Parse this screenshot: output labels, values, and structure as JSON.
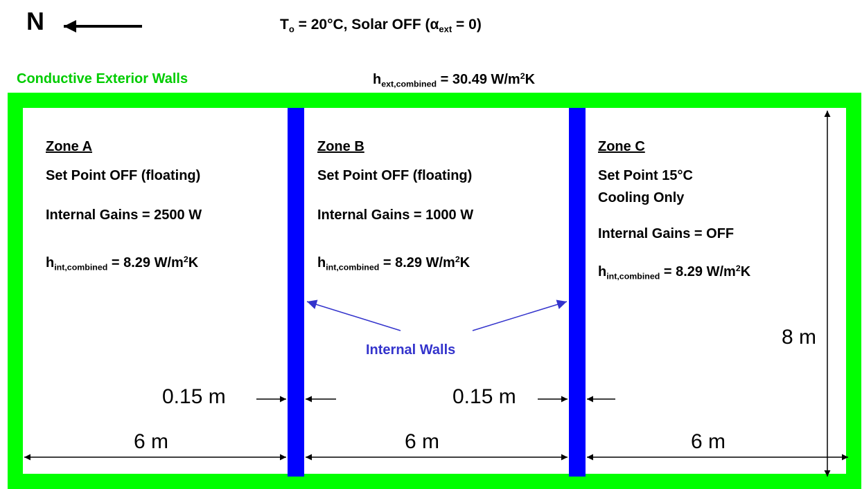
{
  "header": {
    "north_label": "N",
    "conditions": {
      "t_symbol": "T",
      "t_sub": "o",
      "t_rest": " = 20°C, Solar OFF (",
      "alpha": "α",
      "alpha_sub": "ext",
      "alpha_rest": " = 0)"
    },
    "exterior_walls_label": "Conductive Exterior Walls",
    "h_ext": {
      "symbol": "h",
      "sub": "ext,combined",
      "value": " = 30.49 W/m",
      "sup": "2",
      "unit_end": "K"
    }
  },
  "zones": [
    {
      "title": "Zone A",
      "setpoint": "Set Point OFF (floating)",
      "setpoint_line2": "",
      "gains": "Internal Gains = 2500 W",
      "h_int": {
        "symbol": "h",
        "sub": "int,combined",
        "value": " = 8.29 W/m",
        "sup": "2",
        "unit_end": "K"
      }
    },
    {
      "title": "Zone B",
      "setpoint": "Set Point OFF (floating)",
      "setpoint_line2": "",
      "gains": "Internal Gains = 1000 W",
      "h_int": {
        "symbol": "h",
        "sub": "int,combined",
        "value": " = 8.29 W/m",
        "sup": "2",
        "unit_end": "K"
      }
    },
    {
      "title": "Zone C",
      "setpoint": "Set Point 15°C",
      "setpoint_line2": "Cooling Only",
      "gains": "Internal Gains = OFF",
      "h_int": {
        "symbol": "h",
        "sub": "int,combined",
        "value": " = 8.29 W/m",
        "sup": "2",
        "unit_end": "K"
      }
    }
  ],
  "internal_walls_label": "Internal Walls",
  "dimensions": {
    "wall_thickness_1": "0.15 m",
    "wall_thickness_2": "0.15 m",
    "width_a": "6 m",
    "width_b": "6 m",
    "width_c": "6 m",
    "height": "8 m"
  },
  "colors": {
    "exterior_wall": "#00ff00",
    "internal_wall": "#0000ff",
    "internal_wall_label": "#3333cc",
    "exterior_label": "#00cc00"
  }
}
